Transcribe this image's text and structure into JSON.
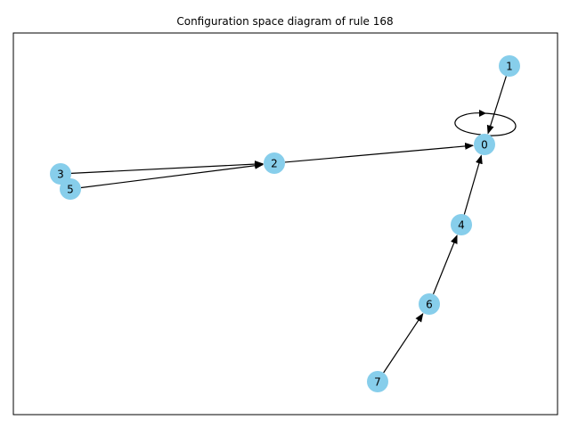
{
  "diagram": {
    "title": "Configuration space diagram of rule 168",
    "node_color": "#87CEEB",
    "edge_color": "#000000",
    "nodes": [
      {
        "id": "0",
        "label": "0"
      },
      {
        "id": "1",
        "label": "1"
      },
      {
        "id": "2",
        "label": "2"
      },
      {
        "id": "3",
        "label": "3"
      },
      {
        "id": "4",
        "label": "4"
      },
      {
        "id": "5",
        "label": "5"
      },
      {
        "id": "6",
        "label": "6"
      },
      {
        "id": "7",
        "label": "7"
      }
    ],
    "edges": [
      {
        "from": "0",
        "to": "0"
      },
      {
        "from": "1",
        "to": "0"
      },
      {
        "from": "2",
        "to": "0"
      },
      {
        "from": "3",
        "to": "2"
      },
      {
        "from": "5",
        "to": "2"
      },
      {
        "from": "4",
        "to": "0"
      },
      {
        "from": "6",
        "to": "4"
      },
      {
        "from": "7",
        "to": "6"
      }
    ]
  }
}
